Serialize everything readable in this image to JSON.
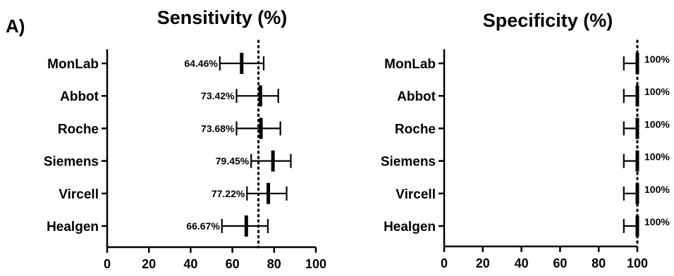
{
  "panel_label": "A)",
  "chart_data": [
    {
      "type": "forest",
      "title": "Sensitivity (%)",
      "xlabel": "",
      "ylabel": "",
      "xlim": [
        0,
        100
      ],
      "xticks": [
        "0",
        "20",
        "40",
        "60",
        "80",
        "100"
      ],
      "reference_line": 72.5,
      "categories": [
        "MonLab",
        "Abbot",
        "Roche",
        "Siemens",
        "Vircell",
        "Healgen"
      ],
      "points": [
        {
          "label": "MonLab",
          "value": 64.46,
          "low": 54,
          "high": 75,
          "text": "64.46%"
        },
        {
          "label": "Abbot",
          "value": 73.42,
          "low": 62,
          "high": 82,
          "text": "73.42%"
        },
        {
          "label": "Roche",
          "value": 73.68,
          "low": 62,
          "high": 83,
          "text": "73.68%"
        },
        {
          "label": "Siemens",
          "value": 79.45,
          "low": 69,
          "high": 88,
          "text": "79.45%"
        },
        {
          "label": "Vircell",
          "value": 77.22,
          "low": 67,
          "high": 86,
          "text": "77.22%"
        },
        {
          "label": "Healgen",
          "value": 66.67,
          "low": 55,
          "high": 77,
          "text": "66.67%"
        }
      ]
    },
    {
      "type": "forest",
      "title": "Specificity (%)",
      "xlabel": "",
      "ylabel": "",
      "xlim": [
        0,
        100
      ],
      "xticks": [
        "0",
        "20",
        "40",
        "60",
        "80",
        "100"
      ],
      "reference_line": 100,
      "categories": [
        "MonLab",
        "Abbot",
        "Roche",
        "Siemens",
        "Vircell",
        "Healgen"
      ],
      "points": [
        {
          "label": "MonLab",
          "value": 100,
          "low": 93,
          "high": 100,
          "text": "100%"
        },
        {
          "label": "Abbot",
          "value": 100,
          "low": 93,
          "high": 100,
          "text": "100%"
        },
        {
          "label": "Roche",
          "value": 100,
          "low": 93,
          "high": 100,
          "text": "100%"
        },
        {
          "label": "Siemens",
          "value": 100,
          "low": 93,
          "high": 100,
          "text": "100%"
        },
        {
          "label": "Vircell",
          "value": 100,
          "low": 93,
          "high": 100,
          "text": "100%"
        },
        {
          "label": "Healgen",
          "value": 100,
          "low": 93,
          "high": 100,
          "text": "100%"
        }
      ]
    }
  ]
}
